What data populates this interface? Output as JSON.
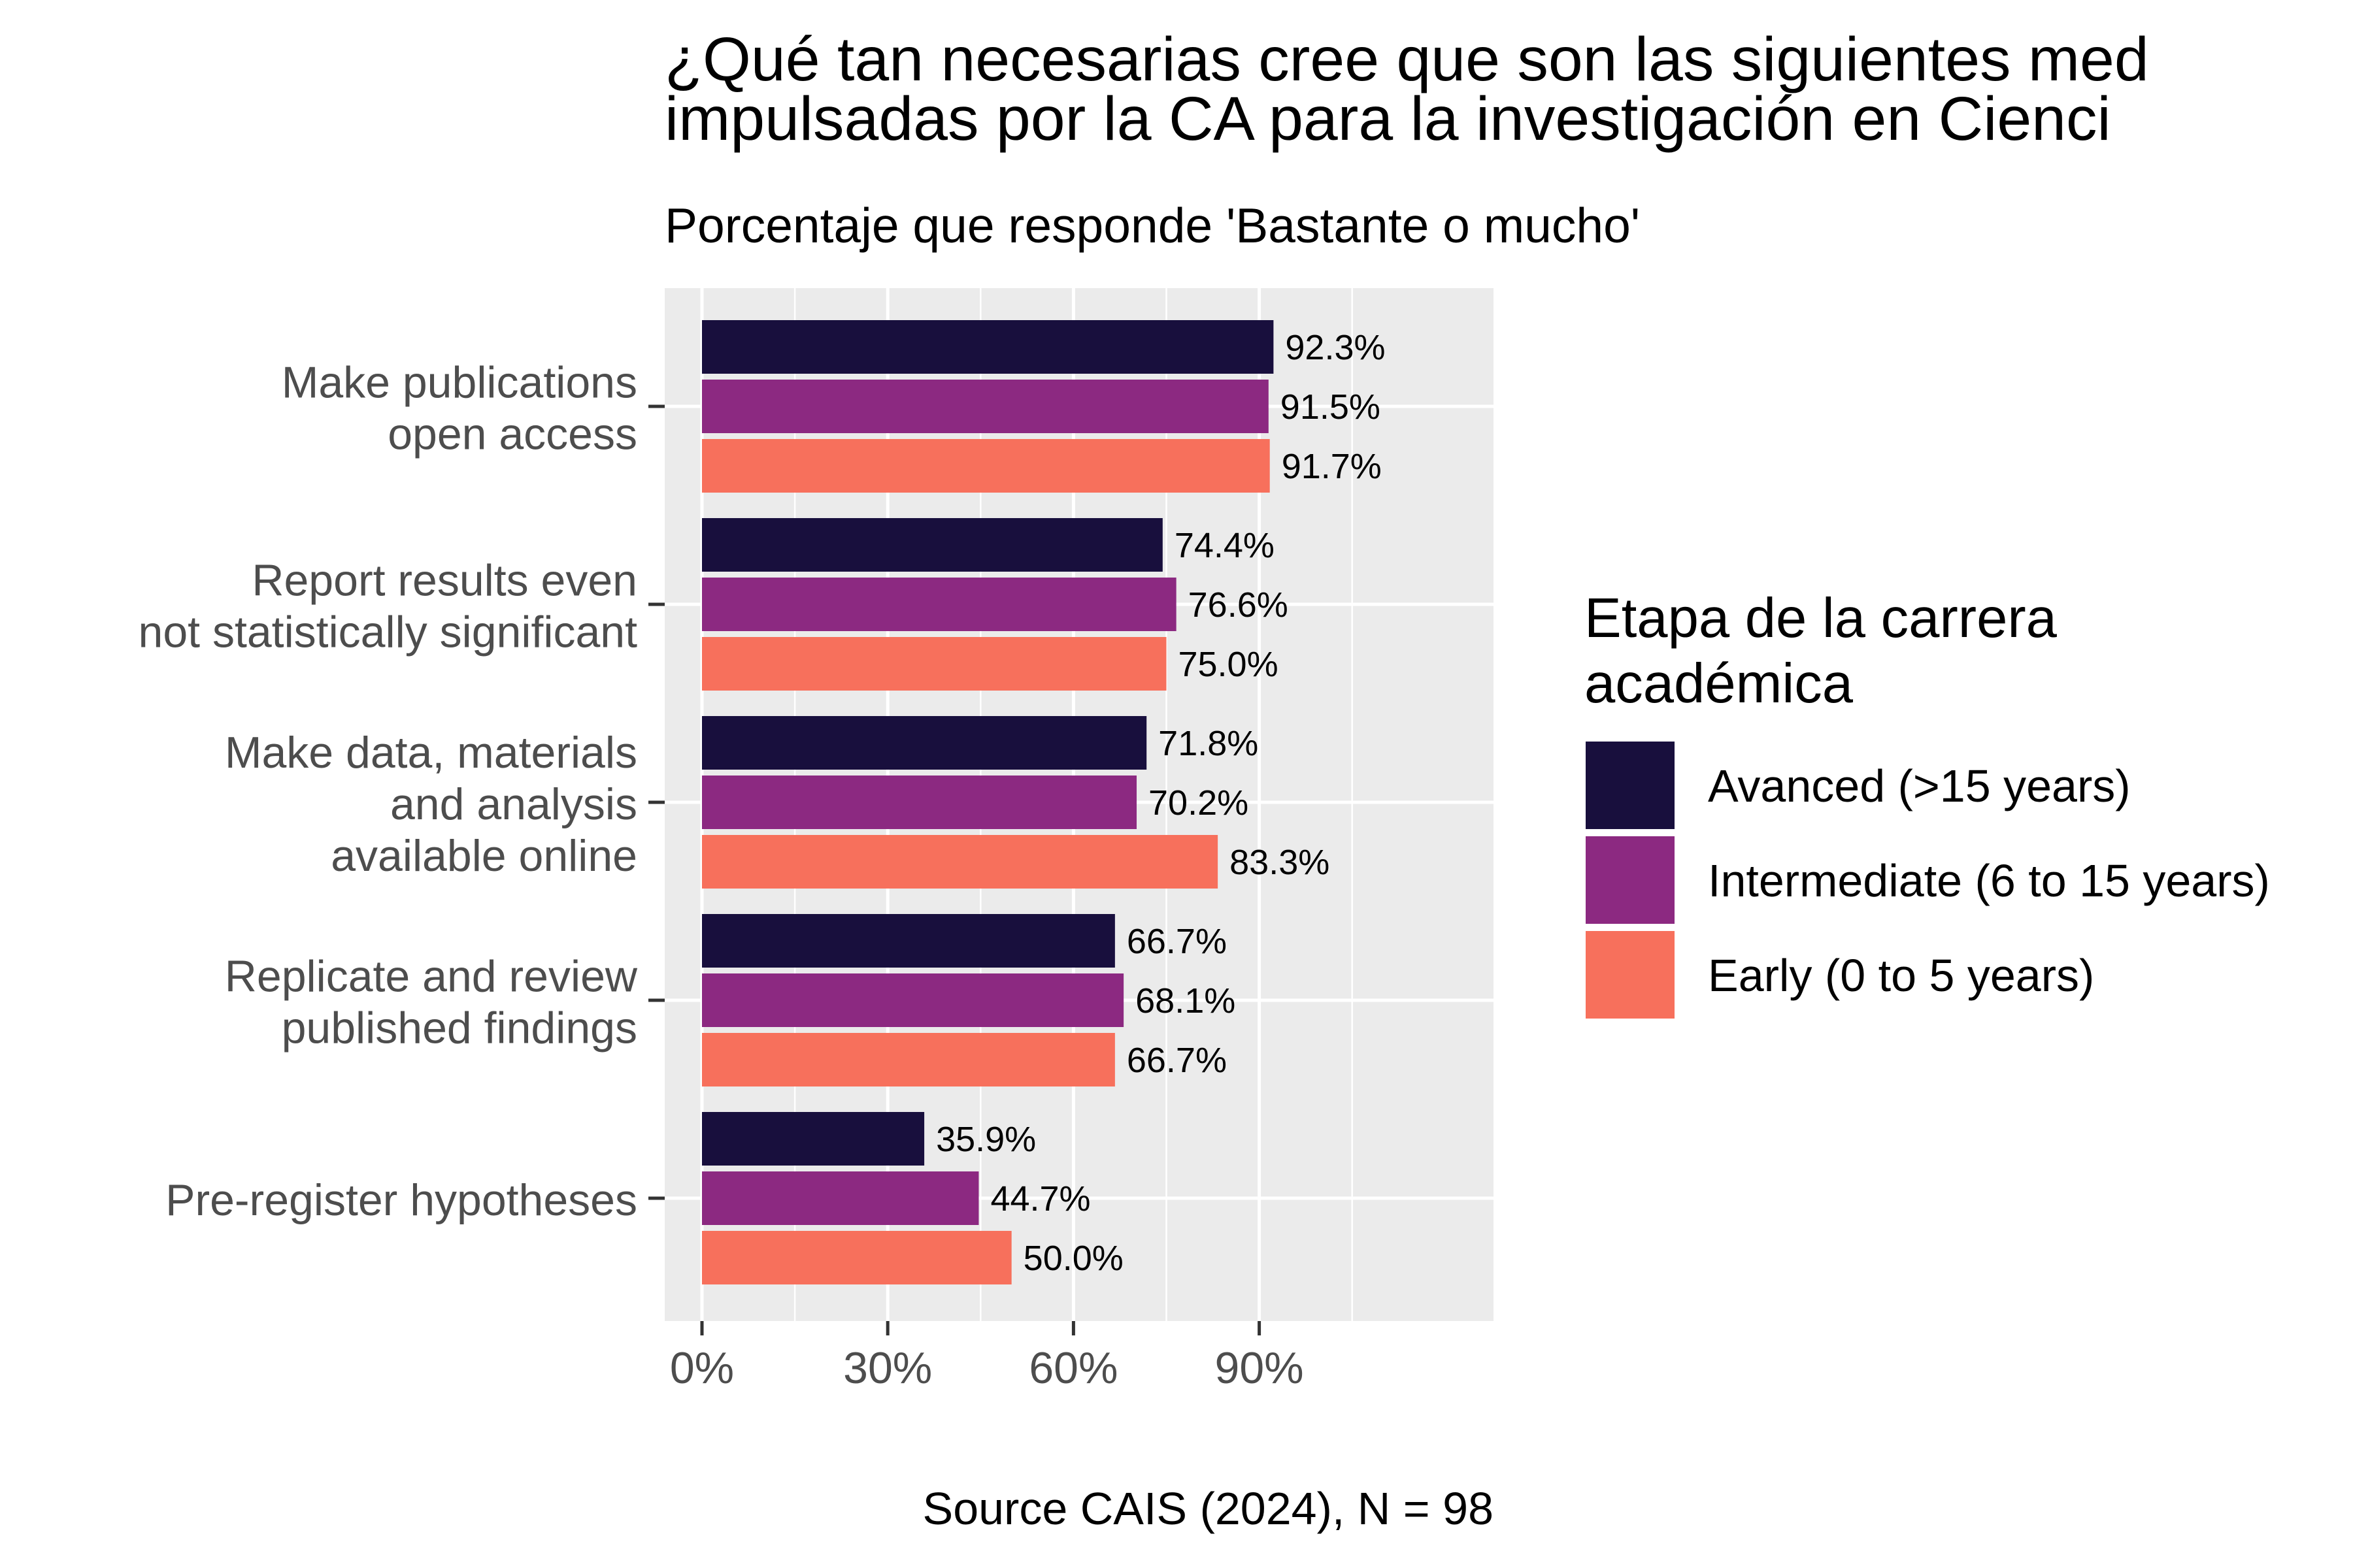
{
  "chart_data": {
    "type": "bar",
    "orientation": "horizontal",
    "title_lines": [
      "¿Qué tan necesarias cree que son las siguientes med",
      "impulsadas por la CA para la investigación en Cienci"
    ],
    "subtitle": "Porcentaje que responde 'Bastante o mucho'",
    "caption": "Source CAIS (2024), N = 98",
    "categories": [
      {
        "lines": [
          "Make publications",
          "open access"
        ]
      },
      {
        "lines": [
          "Report results even",
          "not statistically significant"
        ]
      },
      {
        "lines": [
          "Make data, materials",
          "and analysis",
          "available online"
        ]
      },
      {
        "lines": [
          "Replicate and review",
          "published findings"
        ]
      },
      {
        "lines": [
          "Pre-register hypotheses"
        ]
      }
    ],
    "series": [
      {
        "name": "Avanced (>15 years)",
        "color": "#180F3D",
        "values": [
          92.3,
          74.4,
          71.8,
          66.7,
          35.9
        ],
        "labels": [
          "92.3%",
          "74.4%",
          "71.8%",
          "66.7%",
          "35.9%"
        ]
      },
      {
        "name": "Intermediate (6 to 15 years)",
        "color": "#8C2981",
        "values": [
          91.5,
          76.6,
          70.2,
          68.1,
          44.7
        ],
        "labels": [
          "91.5%",
          "76.6%",
          "70.2%",
          "68.1%",
          "44.7%"
        ]
      },
      {
        "name": "Early (0 to 5 years)",
        "color": "#F7705C",
        "values": [
          91.7,
          75.0,
          83.3,
          66.7,
          50.0
        ],
        "labels": [
          "91.7%",
          "75.0%",
          "83.3%",
          "66.7%",
          "50.0%"
        ]
      }
    ],
    "x_axis": {
      "range": [
        -5.5,
        115.5
      ],
      "ticks": [
        0,
        30,
        60,
        90
      ],
      "tick_labels": [
        "0%",
        "30%",
        "60%",
        "90%"
      ],
      "minor_ticks": [
        15,
        45,
        75,
        105
      ]
    },
    "legend": {
      "title_lines": [
        "Etapa de la carrera",
        "académica"
      ],
      "position": "right"
    },
    "grid": true,
    "panel_background": "#EBEBEB",
    "grid_color": "#FFFFFF"
  }
}
